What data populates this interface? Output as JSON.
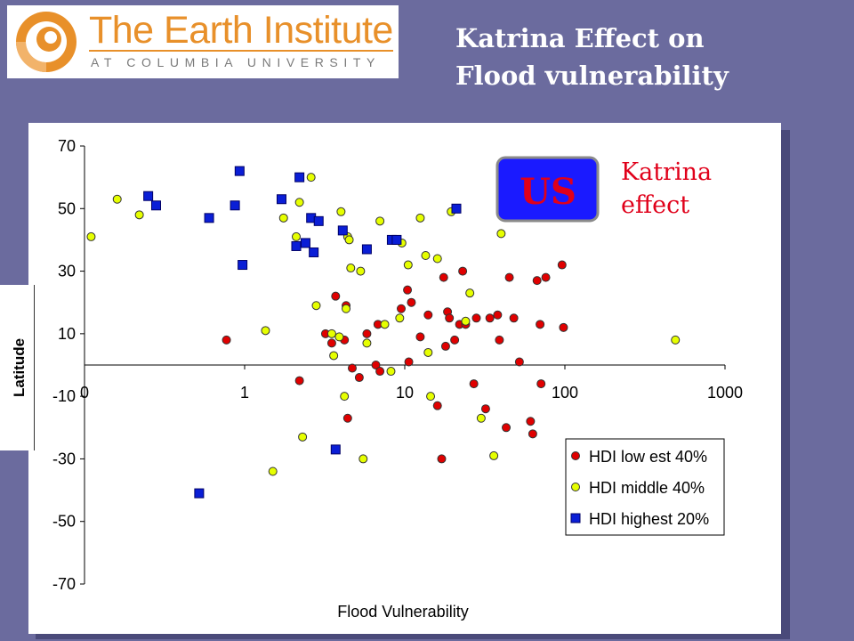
{
  "logo": {
    "name": "The Earth Institute",
    "subtitle": "AT COLUMBIA UNIVERSITY"
  },
  "slide_title": [
    "Katrina Effect on",
    "Flood vulnerability"
  ],
  "callout": {
    "box_label": "US",
    "text": [
      "Katrina",
      "effect"
    ],
    "box_color": "#1a1aff",
    "text_color": "#e0001a"
  },
  "colors": {
    "background": "#6b6b9e",
    "low": "#e00000",
    "middle": "#e6ff00",
    "high": "#0a1ed6"
  },
  "chart_data": {
    "type": "scatter",
    "xlabel": "Flood Vulnerability",
    "ylabel": "Latitude",
    "xscale": "log",
    "xlim": [
      0.1,
      1000
    ],
    "ylim": [
      -70,
      70
    ],
    "xticks": [
      {
        "v": 0.1,
        "label": "0"
      },
      {
        "v": 1,
        "label": "1"
      },
      {
        "v": 10,
        "label": "10"
      },
      {
        "v": 100,
        "label": "100"
      },
      {
        "v": 1000,
        "label": "1000"
      }
    ],
    "yticks": [
      70,
      50,
      30,
      10,
      -10,
      -30,
      -50,
      -70
    ],
    "legend_position": "bottom-right",
    "series": [
      {
        "name": "HDI low est 40%",
        "marker": "circle",
        "color": "#e00000",
        "points": [
          [
            0.77,
            8
          ],
          [
            2.2,
            -5
          ],
          [
            3.2,
            10
          ],
          [
            3.5,
            7
          ],
          [
            3.7,
            22
          ],
          [
            4.2,
            8
          ],
          [
            4.3,
            19
          ],
          [
            4.4,
            -17
          ],
          [
            4.7,
            -1
          ],
          [
            5.2,
            -4
          ],
          [
            5.8,
            10
          ],
          [
            6.6,
            0
          ],
          [
            6.8,
            13
          ],
          [
            7,
            -2
          ],
          [
            9.5,
            18
          ],
          [
            10.4,
            24
          ],
          [
            10.6,
            1
          ],
          [
            11,
            20
          ],
          [
            12.5,
            9
          ],
          [
            14,
            16
          ],
          [
            16,
            -13
          ],
          [
            17,
            -30
          ],
          [
            17.5,
            28
          ],
          [
            18,
            6
          ],
          [
            18.5,
            17
          ],
          [
            19,
            15
          ],
          [
            20.5,
            8
          ],
          [
            22,
            13
          ],
          [
            23,
            30
          ],
          [
            24,
            13
          ],
          [
            27,
            -6
          ],
          [
            28,
            15
          ],
          [
            32,
            -14
          ],
          [
            34,
            15
          ],
          [
            38,
            16
          ],
          [
            39,
            8
          ],
          [
            43,
            -20
          ],
          [
            45,
            28
          ],
          [
            48,
            15
          ],
          [
            52,
            1
          ],
          [
            61,
            -18
          ],
          [
            63,
            -22
          ],
          [
            67,
            27
          ],
          [
            70,
            13
          ],
          [
            71,
            -6
          ],
          [
            76,
            28
          ],
          [
            96,
            32
          ],
          [
            98,
            12
          ]
        ]
      },
      {
        "name": "HDI middle 40%",
        "marker": "circle",
        "color": "#e6ff00",
        "points": [
          [
            0.11,
            41
          ],
          [
            0.16,
            53
          ],
          [
            0.22,
            48
          ],
          [
            1.35,
            11
          ],
          [
            1.5,
            -34
          ],
          [
            1.75,
            47
          ],
          [
            2.1,
            41
          ],
          [
            2.2,
            52
          ],
          [
            2.3,
            -23
          ],
          [
            2.6,
            60
          ],
          [
            2.8,
            19
          ],
          [
            3.5,
            10
          ],
          [
            3.6,
            3
          ],
          [
            3.9,
            9
          ],
          [
            4,
            49
          ],
          [
            4.2,
            -10
          ],
          [
            4.3,
            18
          ],
          [
            4.4,
            41
          ],
          [
            4.5,
            40
          ],
          [
            4.6,
            31
          ],
          [
            5.3,
            30
          ],
          [
            5.5,
            -30
          ],
          [
            5.8,
            7
          ],
          [
            7,
            46
          ],
          [
            7.5,
            13
          ],
          [
            8.2,
            -2
          ],
          [
            9.3,
            15
          ],
          [
            9.6,
            39
          ],
          [
            10.5,
            32
          ],
          [
            12.5,
            47
          ],
          [
            13.5,
            35
          ],
          [
            14,
            4
          ],
          [
            14.5,
            -10
          ],
          [
            16,
            34
          ],
          [
            19.5,
            49
          ],
          [
            24,
            14
          ],
          [
            25.5,
            23
          ],
          [
            30,
            -17
          ],
          [
            36,
            -29
          ],
          [
            40,
            42
          ],
          [
            490,
            8
          ]
        ]
      },
      {
        "name": "HDI highest 20%",
        "marker": "square",
        "color": "#0a1ed6",
        "points": [
          [
            0.25,
            54
          ],
          [
            0.28,
            51
          ],
          [
            0.52,
            -41
          ],
          [
            0.6,
            47
          ],
          [
            0.87,
            51
          ],
          [
            0.93,
            62
          ],
          [
            0.97,
            32
          ],
          [
            1.7,
            53
          ],
          [
            2.1,
            38
          ],
          [
            2.2,
            60
          ],
          [
            2.4,
            39
          ],
          [
            2.6,
            47
          ],
          [
            2.7,
            36
          ],
          [
            2.9,
            46
          ],
          [
            3.7,
            -27
          ],
          [
            4.1,
            43
          ],
          [
            5.8,
            37
          ],
          [
            8.3,
            40
          ],
          [
            8.9,
            40
          ],
          [
            21,
            50
          ]
        ]
      }
    ]
  }
}
